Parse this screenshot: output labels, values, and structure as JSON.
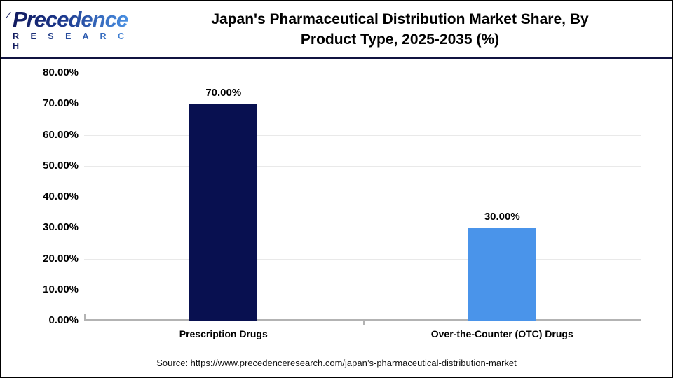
{
  "header": {
    "logo_brand": "Precedence",
    "logo_sub": "R E S E A R C H",
    "title_line1": "Japan's Pharmaceutical Distribution Market Share, By",
    "title_line2": "Product Type, 2025-2035 (%)"
  },
  "chart_data": {
    "type": "bar",
    "title": "Japan's Pharmaceutical Distribution Market Share, By Product Type, 2025-2035 (%)",
    "categories": [
      "Prescription Drugs",
      "Over-the-Counter (OTC) Drugs"
    ],
    "values": [
      70,
      30
    ],
    "value_labels": [
      "70.00%",
      "30.00%"
    ],
    "bar_colors": [
      "#081050",
      "#4a94ea"
    ],
    "ylim": [
      0,
      80
    ],
    "ytick_step": 10,
    "ytick_labels": [
      "0.00%",
      "10.00%",
      "20.00%",
      "30.00%",
      "40.00%",
      "50.00%",
      "60.00%",
      "70.00%",
      "80.00%"
    ],
    "grid": true,
    "legend_position": "none",
    "xlabel": "",
    "ylabel": ""
  },
  "footer": {
    "source": "Source: https://www.precedenceresearch.com/japan’s-pharmaceutical-distribution-market"
  },
  "colors": {
    "header_separator": "#101340",
    "axis_line": "#b3b3b3",
    "gridline": "#e9e9e9",
    "logo_navy": "#121a5e",
    "logo_blue": "#4a90e2"
  }
}
